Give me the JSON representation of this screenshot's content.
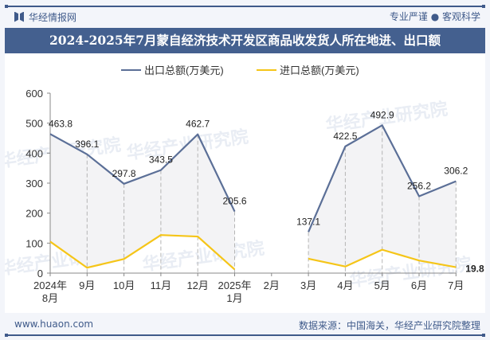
{
  "header": {
    "brand": "华经情报网",
    "slogan": "专业严谨 ● 客观科学",
    "title": "2024-2025年7月蒙自经济技术开发区商品收发货人所在地进、出口额"
  },
  "footer": {
    "site": "www.huaon.com",
    "source": "数据来源：中国海关，华经产业研究院整理"
  },
  "watermark": "华经产业研究院",
  "colors": {
    "export": "#5b6f97",
    "import": "#f5c518",
    "brand": "#3f5a8a"
  },
  "chart_data": {
    "type": "line",
    "title": "2024-2025年7月蒙自经济技术开发区商品收发货人所在地进、出口额",
    "xlabel": "",
    "ylabel": "",
    "ylim": [
      0,
      600
    ],
    "yticks": [
      0,
      100,
      200,
      300,
      400,
      500,
      600
    ],
    "grid": false,
    "legend_position": "top",
    "categories": [
      "2024年8月",
      "9月",
      "10月",
      "11月",
      "12月",
      "2025年1月",
      "2月",
      "3月",
      "4月",
      "5月",
      "6月",
      "7月"
    ],
    "category_lines": [
      [
        "2024年",
        "8月"
      ],
      [
        "9月"
      ],
      [
        "10月"
      ],
      [
        "11月"
      ],
      [
        "12月"
      ],
      [
        "2025年",
        "1月"
      ],
      [
        "2月"
      ],
      [
        "3月"
      ],
      [
        "4月"
      ],
      [
        "5月"
      ],
      [
        "6月"
      ],
      [
        "7月"
      ]
    ],
    "series": [
      {
        "name": "出口总额(万美元)",
        "values": [
          463.8,
          396.1,
          297.8,
          343.5,
          462.7,
          205.6,
          null,
          137.1,
          422.5,
          492.9,
          256.2,
          306.2
        ],
        "labels": [
          "463.8",
          "396.1",
          "297.8",
          "343.5",
          "462.7",
          "205.6",
          "",
          "137.1",
          "422.5",
          "492.9",
          "256.2",
          "306.2"
        ]
      },
      {
        "name": "进口总额(万美元)",
        "values": [
          105,
          18,
          47,
          127,
          122,
          12,
          null,
          48,
          22,
          78,
          42,
          19.8
        ],
        "labels": [
          "",
          "",
          "",
          "",
          "",
          "",
          "",
          "",
          "",
          "",
          "",
          "19.8"
        ]
      }
    ]
  }
}
